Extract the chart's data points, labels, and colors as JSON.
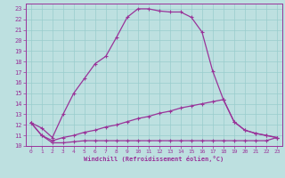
{
  "xlabel": "Windchill (Refroidissement éolien,°C)",
  "background_color": "#bde0e0",
  "grid_color": "#99cccc",
  "line_color": "#993399",
  "spine_color": "#993399",
  "xlim": [
    -0.5,
    23.5
  ],
  "ylim": [
    10,
    23.5
  ],
  "xticks": [
    0,
    1,
    2,
    3,
    4,
    5,
    6,
    7,
    8,
    9,
    10,
    11,
    12,
    13,
    14,
    15,
    16,
    17,
    18,
    19,
    20,
    21,
    22,
    23
  ],
  "yticks": [
    10,
    11,
    12,
    13,
    14,
    15,
    16,
    17,
    18,
    19,
    20,
    21,
    22,
    23
  ],
  "curve1_x": [
    0,
    1,
    2,
    3,
    4,
    5,
    6,
    7,
    8,
    9,
    10,
    11,
    12,
    13,
    14,
    15,
    16,
    17,
    18,
    19,
    20,
    21,
    22,
    23
  ],
  "curve1_y": [
    12.2,
    11.7,
    10.8,
    13.0,
    15.0,
    16.4,
    17.8,
    18.5,
    20.3,
    22.2,
    23.0,
    23.0,
    22.8,
    22.7,
    22.7,
    22.2,
    20.8,
    17.1,
    14.4,
    12.3,
    11.5,
    11.2,
    11.0,
    10.8
  ],
  "curve2_x": [
    0,
    1,
    2,
    3,
    4,
    5,
    6,
    7,
    8,
    9,
    10,
    11,
    12,
    13,
    14,
    15,
    16,
    17,
    18,
    19,
    20,
    21,
    22,
    23
  ],
  "curve2_y": [
    12.2,
    11.0,
    10.5,
    10.8,
    11.0,
    11.3,
    11.5,
    11.8,
    12.0,
    12.3,
    12.6,
    12.8,
    13.1,
    13.3,
    13.6,
    13.8,
    14.0,
    14.2,
    14.4,
    12.3,
    11.5,
    11.2,
    11.0,
    10.8
  ],
  "curve3_x": [
    0,
    1,
    2,
    3,
    4,
    5,
    6,
    7,
    8,
    9,
    10,
    11,
    12,
    13,
    14,
    15,
    16,
    17,
    18,
    19,
    20,
    21,
    22,
    23
  ],
  "curve3_y": [
    12.2,
    11.0,
    10.3,
    10.3,
    10.4,
    10.5,
    10.5,
    10.5,
    10.5,
    10.5,
    10.5,
    10.5,
    10.5,
    10.5,
    10.5,
    10.5,
    10.5,
    10.5,
    10.5,
    10.5,
    10.5,
    10.5,
    10.5,
    10.8
  ]
}
